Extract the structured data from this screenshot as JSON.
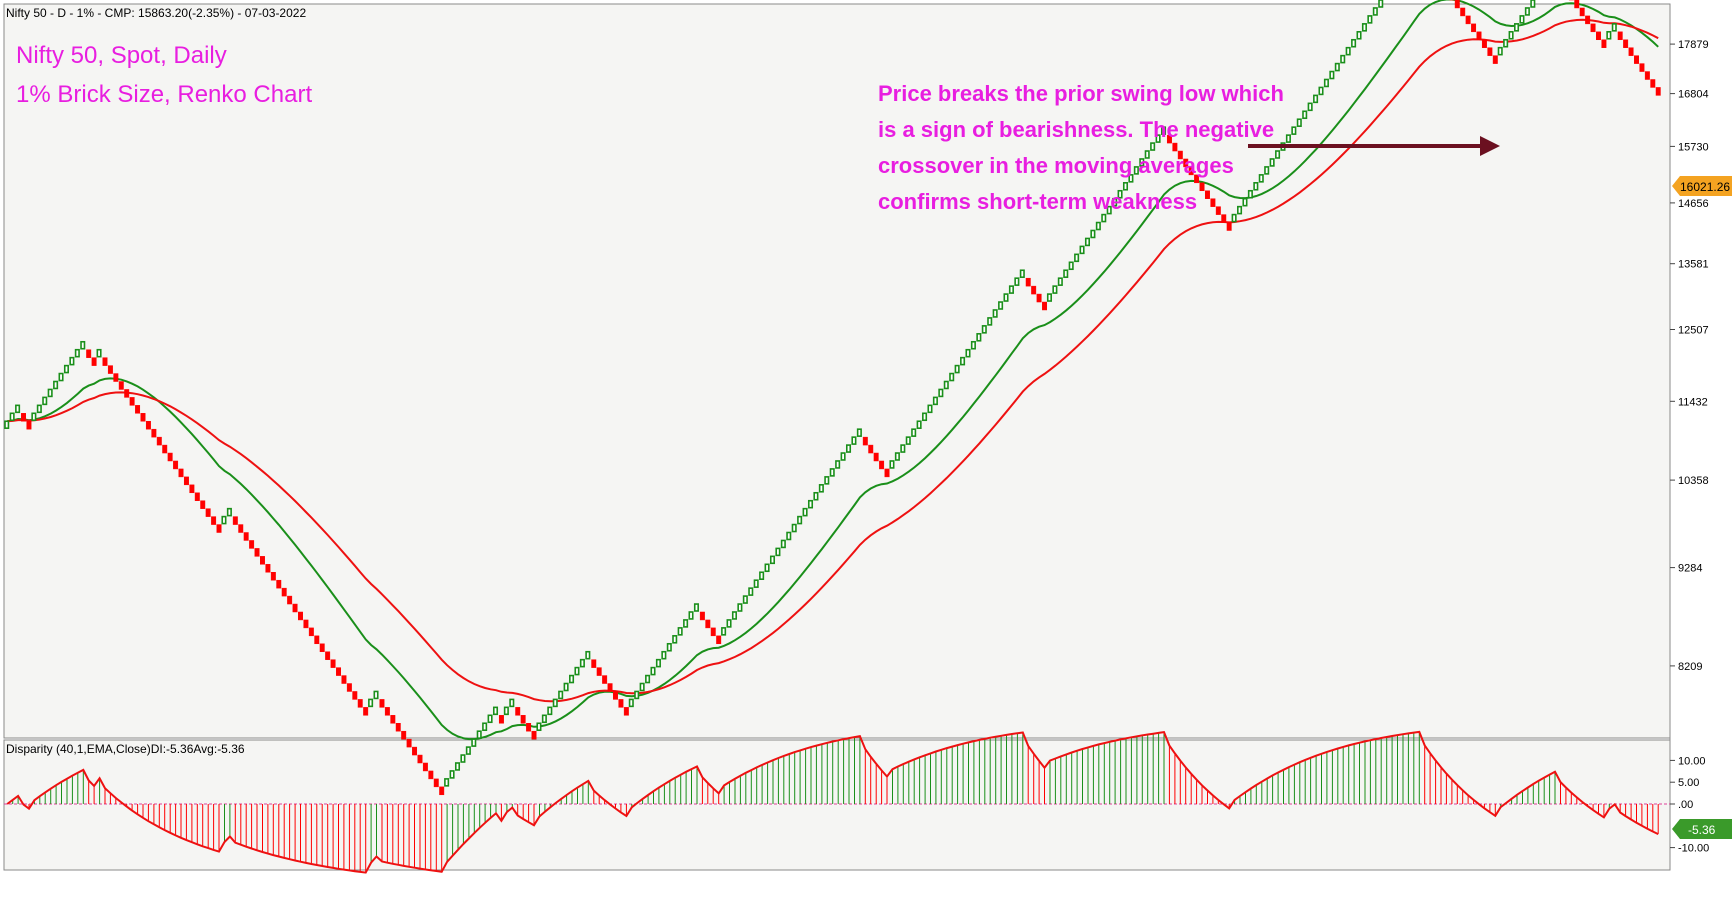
{
  "header": {
    "title": "Nifty 50 - D - 1% - CMP: 15863.20(-2.35%) - 07-03-2022",
    "subtitle_line1": "Nifty 50, Spot, Daily",
    "subtitle_line2": "1% Brick Size, Renko Chart",
    "annotation_lines": [
      "Price breaks the prior swing low which",
      "is a sign of bearishness. The negative",
      "crossover in the moving averages",
      "confirms short-term weakness"
    ]
  },
  "indicator": {
    "label": "Disparity (40,1,EMA,Close)DI:-5.36Avg:-5.36",
    "current_badge": "-5.36"
  },
  "price_badge": "16021.26",
  "colors": {
    "background": "#f5f5f3",
    "up_brick": "#1a8f1a",
    "down_brick": "#ff0000",
    "ma_fast": "#1a8f1a",
    "ma_slow": "#ee1111",
    "annotation": "#e81ee0",
    "arrow": "#6b1020",
    "price_badge_bg": "#f4a321",
    "disparity_badge_bg": "#3a9a2a"
  },
  "chart_data": [
    {
      "type": "renko",
      "title": "Nifty 50 - D - 1% - CMP: 15863.20(-2.35%) - 07-03-2022",
      "brick_size_pct": 1,
      "y_scale": "log",
      "ylim": [
        7500,
        18800
      ],
      "y_ticks": [
        8209,
        9284,
        10358,
        11432,
        12507,
        13581,
        14656,
        15730,
        16804,
        17879
      ],
      "bricks": "UUUDDUUUUUUUUUUDDUDDDDDDDDDDDDDDDDDDDDDDUUDDDDDDDDDDDDDDDDDDDDDDDDDUUDDDDDDDDDDDDUUUUUUUUUUDUUDDDDUUUUUUUUUUDDDDDDDUUUUUUUUUUUUUDDDDUUUUUUUUUUUUUUUUUUUUUUUUUUDDDDDUUUUUUUUUUUUUUUUUUUUUUUUUDDDDUUUUUUUUUUUUUUUUUUUUUUDDDDDDDDDDDDUUUUUUUUUUUUUUUUUUUUUUUUUUUUUUUUUUUDDDDDDDDDDDDDDUUUUUUUUUUUDDDDDDDDDUUDDDDDDDD",
      "start_close": 11040,
      "last_value": 16021.26,
      "moving_averages": [
        {
          "color": "green"
        },
        {
          "color": "red"
        }
      ]
    },
    {
      "type": "histogram",
      "title": "Disparity (40,1,EMA,Close)DI:-5.36Avg:-5.36",
      "ylim": [
        -14,
        14
      ],
      "y_ticks": [
        10,
        5,
        0,
        -10
      ],
      "y_tick_labels": [
        "10.00",
        "5.00",
        ".00",
        "-10.00"
      ],
      "last_value": -5.36
    }
  ]
}
